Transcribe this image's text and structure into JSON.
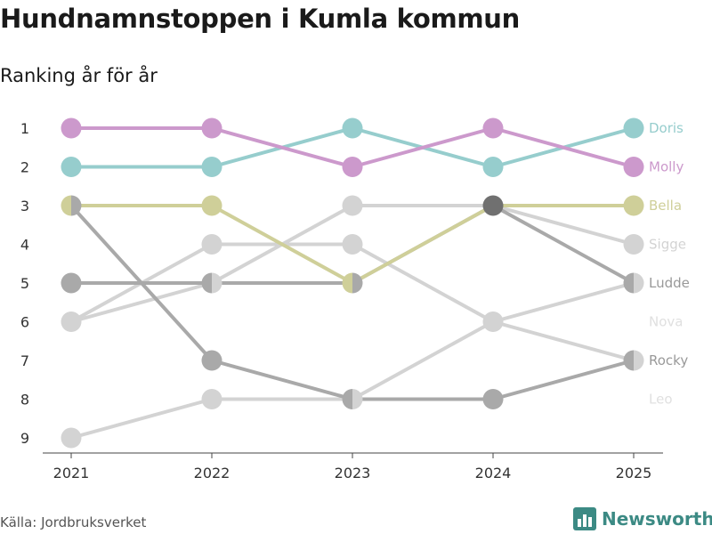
{
  "title": "Hundnamnstoppen i Kumla kommun",
  "subtitle": "Ranking år för år",
  "source": "Källa: Jordbruksverket",
  "brand": {
    "name": "Newsworthy",
    "icon": "bar-chart-logo-icon",
    "color": "#3c8a84"
  },
  "chart_data": {
    "type": "line",
    "chart_kind": "bump",
    "title": "Hundnamnstoppen i Kumla kommun",
    "subtitle": "Ranking år för år",
    "x": [
      "2021",
      "2022",
      "2023",
      "2024",
      "2025"
    ],
    "y_ticks": [
      "1",
      "2",
      "3",
      "4",
      "5",
      "6",
      "7",
      "8",
      "9"
    ],
    "ylim": [
      1,
      9
    ],
    "y_inverted": true,
    "legend": "direct labels right",
    "series": [
      {
        "name": "Doris",
        "values": [
          2,
          2,
          1,
          2,
          1
        ],
        "color": "#96cdcd"
      },
      {
        "name": "Molly",
        "values": [
          1,
          1,
          2,
          1,
          2
        ],
        "color": "#cc99cc"
      },
      {
        "name": "Bella",
        "values": [
          3,
          3,
          5,
          3,
          3
        ],
        "color": "#cfcf99"
      },
      {
        "name": "Sigge",
        "values": [
          6,
          4,
          4,
          6,
          7
        ],
        "color": "#d3d3d3"
      },
      {
        "name": "Ludde",
        "values": [
          5,
          5,
          5,
          3,
          5
        ],
        "color": "#a9a9a9"
      },
      {
        "name": "Nova",
        "values": [
          9,
          8,
          8,
          6,
          5
        ],
        "color": "#d3d3d3"
      },
      {
        "name": "Rocky",
        "values": [
          3,
          7,
          8,
          8,
          7
        ],
        "color": "#a9a9a9"
      },
      {
        "name": "Leo",
        "values": [
          6,
          5,
          3,
          3,
          4
        ],
        "color": "#d3d3d3"
      }
    ],
    "label_colors": {
      "Doris": "#96cdcd",
      "Molly": "#cc99cc",
      "Bella": "#cfcf99",
      "Sigge": "#d3d3d3",
      "Ludde": "#999999",
      "Nova": "#e0e0e0",
      "Rocky": "#999999",
      "Leo": "#e0e0e0"
    },
    "label_order": [
      "Doris",
      "Molly",
      "Bella",
      "Sigge",
      "Ludde",
      "Nova",
      "Rocky",
      "Leo"
    ],
    "overlap_point_color": "#707070"
  }
}
